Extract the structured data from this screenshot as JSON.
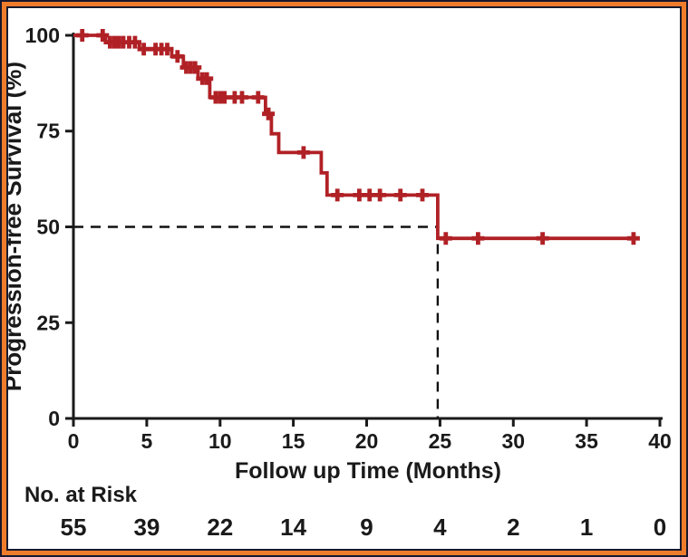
{
  "chart_data": {
    "type": "line",
    "subtype": "kaplan-meier-step",
    "title": "",
    "xlabel": "Follow up Time (Months)",
    "ylabel": "Progression-free Survival (%)",
    "xlim": [
      0,
      40
    ],
    "ylim": [
      0,
      100
    ],
    "x_ticks": [
      0,
      5,
      10,
      15,
      20,
      25,
      30,
      35,
      40
    ],
    "y_ticks": [
      0,
      25,
      50,
      75,
      100
    ],
    "grid": "off",
    "legend": "none",
    "series": [
      {
        "name": "Progression-free survival",
        "color": "#b02126",
        "steps": [
          [
            0,
            100
          ],
          [
            2.2,
            98.2
          ],
          [
            4.5,
            96.4
          ],
          [
            6.7,
            94.5
          ],
          [
            7.5,
            91.6
          ],
          [
            8.5,
            88.7
          ],
          [
            9.3,
            83.8
          ],
          [
            13.1,
            79.5
          ],
          [
            13.5,
            74.3
          ],
          [
            14.0,
            69.4
          ],
          [
            16.9,
            64.1
          ],
          [
            17.3,
            58.3
          ],
          [
            24.85,
            47.0
          ]
        ],
        "end_x": 38.6,
        "censors": [
          [
            0.6,
            100
          ],
          [
            2.0,
            100
          ],
          [
            2.5,
            98.2
          ],
          [
            2.8,
            98.2
          ],
          [
            3.1,
            98.2
          ],
          [
            3.4,
            98.2
          ],
          [
            3.8,
            98.2
          ],
          [
            4.2,
            98.2
          ],
          [
            4.8,
            96.4
          ],
          [
            5.6,
            96.4
          ],
          [
            6.0,
            96.4
          ],
          [
            6.4,
            96.4
          ],
          [
            7.1,
            94.5
          ],
          [
            7.7,
            91.6
          ],
          [
            8.0,
            91.6
          ],
          [
            8.3,
            91.6
          ],
          [
            8.8,
            88.7
          ],
          [
            9.1,
            88.7
          ],
          [
            9.7,
            83.8
          ],
          [
            10.0,
            83.8
          ],
          [
            10.3,
            83.8
          ],
          [
            11.0,
            83.8
          ],
          [
            11.5,
            83.8
          ],
          [
            12.6,
            83.8
          ],
          [
            13.3,
            79.5
          ],
          [
            15.7,
            69.4
          ],
          [
            18.0,
            58.3
          ],
          [
            19.5,
            58.3
          ],
          [
            20.2,
            58.3
          ],
          [
            20.9,
            58.3
          ],
          [
            22.3,
            58.3
          ],
          [
            23.8,
            58.3
          ],
          [
            25.4,
            47.0
          ],
          [
            27.6,
            47.0
          ],
          [
            32.0,
            47.0
          ],
          [
            38.2,
            47.0
          ]
        ]
      }
    ],
    "reference_lines": {
      "horizontal": {
        "y": 50,
        "x_from": 0,
        "x_to": 24.85
      },
      "vertical": {
        "x": 24.85,
        "y_from": 0,
        "y_to": 50
      },
      "style": "dashed"
    },
    "at_risk": {
      "label": "No. at Risk",
      "x": [
        0,
        5,
        10,
        15,
        20,
        25,
        30,
        35,
        40
      ],
      "values": [
        55,
        39,
        22,
        14,
        9,
        4,
        2,
        1,
        0
      ]
    },
    "colors": {
      "curve": "#b02126",
      "axis_text": "#1a1a1a",
      "dashed_reference": "#111111",
      "frame_orange": "#ee7c2b",
      "frame_dark": "#18182e",
      "background": "#ffffff"
    }
  }
}
